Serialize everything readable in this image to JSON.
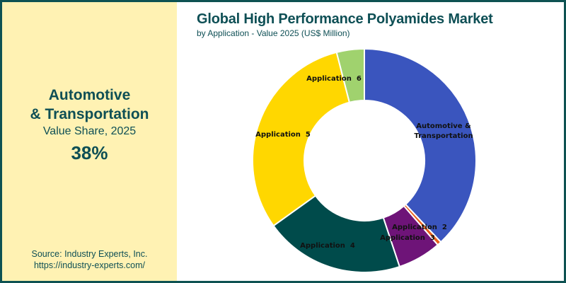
{
  "kpi": {
    "segment_line1": "Automotive",
    "segment_line2": "& Transportation",
    "subtitle": "Value Share, 2025",
    "value": "38%"
  },
  "source": {
    "line1": "Source: Industry Experts, Inc.",
    "line2": "https://industry-experts.com/"
  },
  "header": {
    "title": "Global High Performance Polyamides Market",
    "subtitle": "by Application - Value 2025 (US$ Million)"
  },
  "colors": {
    "border": "#0e5252",
    "left_panel_bg": "#fff2b3",
    "text": "#0e4f55"
  },
  "chart_data": {
    "type": "pie",
    "style": "donut",
    "title": "Global High Performance Polyamides Market",
    "subtitle": "by Application - Value 2025 (US$ Million)",
    "unit": "% share (estimated from slice angles)",
    "categories": [
      "Automotive & Transportation",
      "Application 2",
      "Application 3",
      "Application 4",
      "Application 5",
      "Application 6"
    ],
    "values": [
      38.0,
      0.6,
      6.3,
      20.2,
      30.9,
      4.0
    ],
    "colors": [
      "#3a55be",
      "#e8601c",
      "#6e1478",
      "#004b4b",
      "#ffd700",
      "#a0d26e"
    ],
    "labels": [
      {
        "line1": "Automotive &",
        "line2": "Transportation"
      },
      {
        "line1": "Application  2"
      },
      {
        "line1": "Application  3"
      },
      {
        "line1": "Application  4"
      },
      {
        "line1": "Application  5"
      },
      {
        "line1": "Application  6"
      }
    ],
    "start_angle_deg": 0,
    "direction": "clockwise",
    "legend": "none (inline labels)"
  }
}
